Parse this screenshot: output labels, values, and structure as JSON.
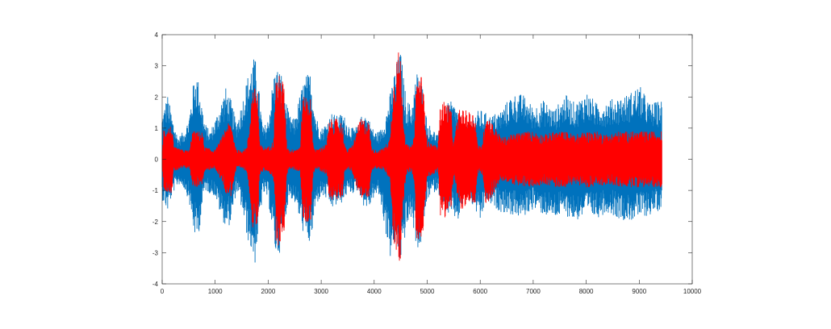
{
  "chart_data": {
    "type": "line",
    "title": "",
    "xlabel": "",
    "ylabel": "",
    "xlim": [
      0,
      10000
    ],
    "ylim": [
      -4,
      4
    ],
    "x_ticks": [
      0,
      1000,
      2000,
      3000,
      4000,
      5000,
      6000,
      7000,
      8000,
      9000,
      10000
    ],
    "y_ticks": [
      -4,
      -3,
      -2,
      -1,
      0,
      1,
      2,
      3,
      4
    ],
    "x_tick_labels": [
      "0",
      "1000",
      "2000",
      "3000",
      "4000",
      "5000",
      "6000",
      "7000",
      "8000",
      "9000",
      "10000"
    ],
    "y_tick_labels": [
      "-4",
      "-3",
      "-2",
      "-1",
      "0",
      "1",
      "2",
      "3",
      "4"
    ],
    "grid": false,
    "legend": "none",
    "sample_count": 9430,
    "series": [
      {
        "color": "#0072BD",
        "envelope": {
          "x": [
            0,
            100,
            200,
            300,
            400,
            500,
            600,
            650,
            700,
            800,
            900,
            1000,
            1100,
            1200,
            1300,
            1400,
            1500,
            1600,
            1700,
            1750,
            1800,
            1900,
            2000,
            2100,
            2150,
            2250,
            2300,
            2400,
            2500,
            2600,
            2700,
            2800,
            2900,
            3000,
            3100,
            3200,
            3300,
            3400,
            3500,
            3600,
            3700,
            3800,
            3900,
            4000,
            4100,
            4200,
            4300,
            4400,
            4500,
            4600,
            4700,
            4800,
            4850,
            4900,
            5000,
            5100,
            5200,
            5300,
            5400,
            5500,
            5600,
            5700,
            5800,
            5900,
            6000,
            6100,
            6200,
            6400,
            6600,
            6800,
            7000,
            7200,
            7400,
            7600,
            7800,
            8000,
            8200,
            8400,
            8600,
            8800,
            9000,
            9200,
            9430
          ],
          "upper": [
            1.4,
            2.1,
            1.3,
            0.7,
            0.9,
            1.3,
            2.6,
            2.8,
            2.4,
            1.2,
            0.9,
            1.3,
            1.8,
            2.3,
            1.9,
            1.2,
            1.8,
            2.6,
            3.2,
            3.3,
            2.7,
            1.0,
            1.3,
            2.7,
            3.0,
            2.8,
            2.2,
            1.4,
            1.3,
            2.1,
            2.7,
            2.8,
            1.4,
            1.0,
            1.2,
            1.5,
            1.4,
            1.5,
            1.2,
            1.0,
            1.1,
            1.6,
            1.3,
            0.9,
            0.9,
            1.3,
            2.1,
            3.0,
            3.5,
            2.0,
            1.7,
            2.8,
            2.9,
            2.5,
            1.2,
            1.0,
            0.8,
            1.2,
            1.9,
            1.8,
            1.6,
            1.0,
            1.2,
            1.5,
            1.6,
            1.5,
            1.4,
            1.6,
            2.1,
            2.1,
            1.7,
            1.9,
            1.6,
            2.1,
            1.8,
            2.2,
            1.8,
            1.9,
            2.0,
            2.1,
            2.4,
            1.8,
            1.9
          ],
          "lower": [
            -1.3,
            -1.7,
            -1.1,
            -0.8,
            -0.9,
            -1.3,
            -2.4,
            -2.6,
            -2.3,
            -1.0,
            -1.1,
            -1.2,
            -1.8,
            -2.2,
            -2.1,
            -1.0,
            -1.6,
            -2.5,
            -3.1,
            -3.4,
            -2.6,
            -1.1,
            -1.3,
            -2.6,
            -3.2,
            -2.9,
            -2.1,
            -1.2,
            -1.4,
            -2.0,
            -2.6,
            -2.8,
            -1.5,
            -1.2,
            -1.3,
            -1.6,
            -1.5,
            -1.4,
            -1.1,
            -1.1,
            -1.0,
            -1.5,
            -1.6,
            -1.2,
            -1.2,
            -2.2,
            -3.2,
            -2.8,
            -3.4,
            -2.3,
            -1.9,
            -2.8,
            -3.0,
            -2.6,
            -1.3,
            -1.1,
            -1.0,
            -1.6,
            -1.8,
            -1.9,
            -2.0,
            -1.2,
            -1.4,
            -1.6,
            -2.1,
            -1.4,
            -1.5,
            -1.7,
            -1.8,
            -1.9,
            -1.6,
            -1.8,
            -1.9,
            -1.8,
            -2.0,
            -1.8,
            -1.9,
            -1.7,
            -1.9,
            -2.0,
            -1.9,
            -1.8,
            -1.6
          ]
        }
      },
      {
        "color": "#FF0000",
        "envelope": {
          "x": [
            0,
            30,
            180,
            220,
            400,
            520,
            560,
            600,
            650,
            760,
            800,
            1000,
            1150,
            1200,
            1300,
            1400,
            1500,
            1600,
            1650,
            1700,
            1800,
            1840,
            1900,
            2000,
            2100,
            2150,
            2200,
            2250,
            2300,
            2350,
            2400,
            2600,
            2650,
            2700,
            2800,
            2850,
            2900,
            3000,
            3100,
            3150,
            3200,
            3300,
            3400,
            3450,
            3500,
            3600,
            3700,
            3750,
            3800,
            3900,
            3950,
            4000,
            4100,
            4200,
            4300,
            4350,
            4400,
            4450,
            4500,
            4550,
            4600,
            4700,
            4750,
            4800,
            4850,
            4900,
            4950,
            5000,
            5200,
            5250,
            5300,
            5400,
            5450,
            5500,
            5550,
            5600,
            5650,
            5900,
            5950,
            6000,
            6050,
            6100,
            6150,
            6400,
            6600,
            6800,
            7000,
            7200,
            7400,
            7600,
            7800,
            8000,
            8200,
            8400,
            8600,
            8800,
            9000,
            9200,
            9430
          ],
          "upper": [
            0.3,
            1.0,
            1.1,
            0.4,
            0.3,
            0.3,
            0.9,
            0.9,
            0.9,
            0.9,
            0.4,
            0.3,
            0.8,
            1.1,
            1.2,
            0.3,
            0.3,
            0.4,
            1.2,
            2.3,
            2.3,
            0.5,
            0.4,
            0.4,
            0.6,
            2.7,
            2.7,
            2.7,
            2.4,
            0.5,
            0.3,
            0.4,
            1.9,
            2.1,
            2.0,
            0.5,
            0.3,
            0.4,
            0.5,
            1.2,
            1.3,
            1.3,
            1.2,
            0.4,
            0.3,
            0.5,
            1.1,
            1.3,
            1.3,
            1.2,
            0.4,
            0.3,
            0.3,
            0.4,
            0.7,
            2.3,
            3.0,
            3.5,
            3.3,
            1.5,
            0.5,
            0.4,
            0.7,
            2.7,
            2.8,
            2.7,
            1.8,
            0.6,
            0.4,
            1.8,
            1.9,
            1.8,
            1.6,
            0.5,
            1.1,
            1.6,
            1.6,
            1.5,
            0.5,
            0.4,
            0.6,
            1.5,
            1.4,
            0.7,
            0.8,
            0.9,
            0.9,
            0.8,
            0.9,
            0.9,
            0.8,
            0.9,
            0.9,
            0.8,
            0.9,
            0.9,
            0.9,
            0.9,
            0.9
          ],
          "lower": [
            -0.3,
            -1.0,
            -1.1,
            -0.4,
            -0.3,
            -0.3,
            -0.8,
            -0.9,
            -0.9,
            -0.8,
            -0.4,
            -0.3,
            -0.8,
            -1.1,
            -1.2,
            -0.3,
            -0.3,
            -0.4,
            -1.1,
            -2.3,
            -2.3,
            -0.5,
            -0.4,
            -0.4,
            -0.6,
            -2.7,
            -2.8,
            -2.6,
            -2.4,
            -0.5,
            -0.3,
            -0.4,
            -1.9,
            -2.1,
            -2.0,
            -0.5,
            -0.3,
            -0.4,
            -0.5,
            -1.2,
            -1.3,
            -1.3,
            -1.2,
            -0.4,
            -0.3,
            -0.5,
            -1.1,
            -1.3,
            -1.3,
            -1.2,
            -0.4,
            -0.3,
            -0.3,
            -0.4,
            -0.7,
            -2.3,
            -3.1,
            -3.5,
            -3.3,
            -1.5,
            -0.5,
            -0.4,
            -0.7,
            -2.8,
            -2.8,
            -2.7,
            -1.8,
            -0.6,
            -0.4,
            -1.8,
            -1.9,
            -1.8,
            -1.6,
            -0.5,
            -1.1,
            -1.6,
            -1.6,
            -1.5,
            -0.5,
            -0.4,
            -0.6,
            -1.5,
            -1.4,
            -0.7,
            -0.8,
            -0.9,
            -0.9,
            -0.8,
            -0.9,
            -0.9,
            -0.8,
            -0.9,
            -0.9,
            -0.8,
            -0.9,
            -0.9,
            -0.9,
            -0.9,
            -0.9
          ]
        }
      }
    ]
  }
}
